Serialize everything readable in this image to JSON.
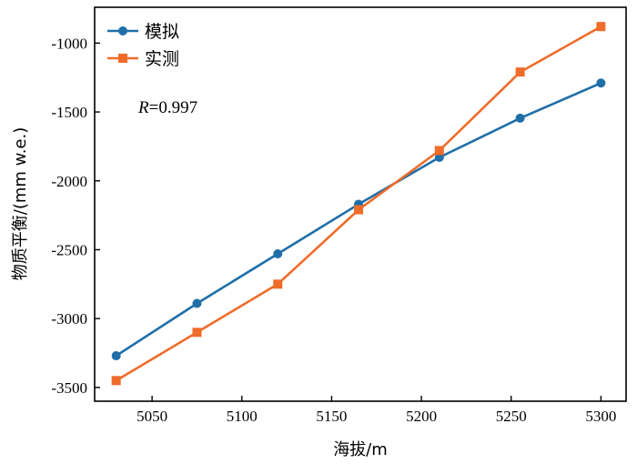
{
  "chart_data": {
    "type": "line",
    "x": [
      5030,
      5075,
      5120,
      5165,
      5210,
      5255,
      5300
    ],
    "series": [
      {
        "name": "模拟",
        "color": "#1f6fa8",
        "marker": "circle",
        "values": [
          -3270,
          -2890,
          -2530,
          -2170,
          -1830,
          -1545,
          -1290
        ]
      },
      {
        "name": "实测",
        "color": "#ef6c2a",
        "marker": "square",
        "values": [
          -3450,
          -3100,
          -2750,
          -2210,
          -1780,
          -1210,
          -880
        ]
      }
    ],
    "xlabel": "海拔/m",
    "ylabel": "物质平衡/(mm w.e.)",
    "xlim": [
      5018,
      5314
    ],
    "ylim": [
      -3600,
      -740
    ],
    "xticks": [
      5050,
      5100,
      5150,
      5200,
      5250,
      5300
    ],
    "yticks": [
      -3500,
      -3000,
      -2500,
      -2000,
      -1500,
      -1000
    ],
    "annotation": {
      "label": "R",
      "value": "=0.997"
    },
    "legend_position": "top-left",
    "grid": false
  }
}
